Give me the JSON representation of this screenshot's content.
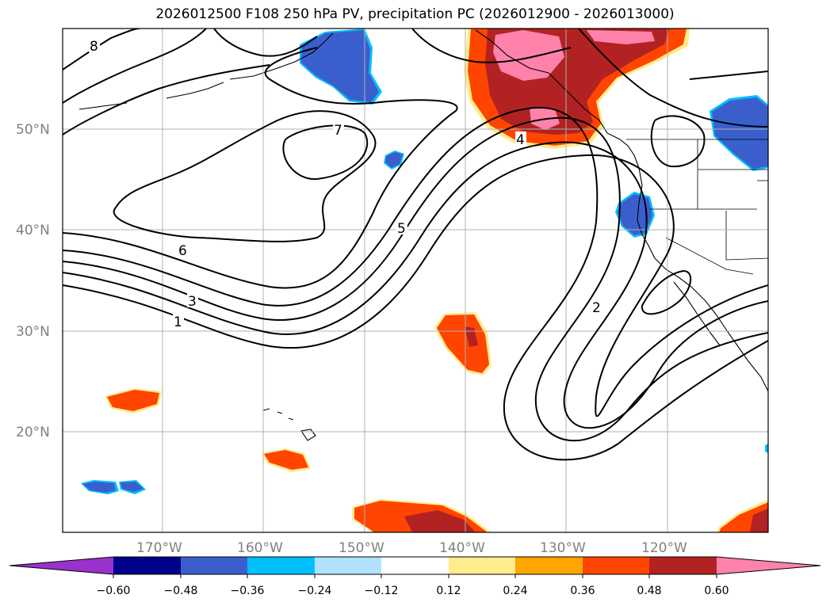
{
  "title": "2026012500 F108 250 hPa PV, precipitation PC (2026012900 - 2026013000)",
  "map": {
    "lat_labels": [
      "50°N",
      "40°N",
      "30°N",
      "20°N"
    ],
    "lon_labels": [
      "170°W",
      "160°W",
      "150°W",
      "140°W",
      "130°W",
      "120°W"
    ],
    "pv_contour_labels": [
      "8",
      "7",
      "6",
      "5",
      "4",
      "3",
      "2",
      "1"
    ]
  },
  "colorbar": {
    "ticks": [
      "−0.60",
      "−0.48",
      "−0.36",
      "−0.24",
      "−0.12",
      "0.12",
      "0.24",
      "0.36",
      "0.48",
      "0.60"
    ],
    "colors": {
      "neg_extend": "#9932cc",
      "neg_060_048": "#00008b",
      "neg_048_036": "#3a5fcd",
      "neg_036_024": "#00bfff",
      "neg_024_012": "#b0e2ff",
      "neutral": "#ffffff",
      "pos_012_024": "#ffec8b",
      "pos_024_036": "#ffa500",
      "pos_036_048": "#ff4500",
      "pos_048_060": "#b22222",
      "pos_extend": "#ff82ab"
    }
  }
}
